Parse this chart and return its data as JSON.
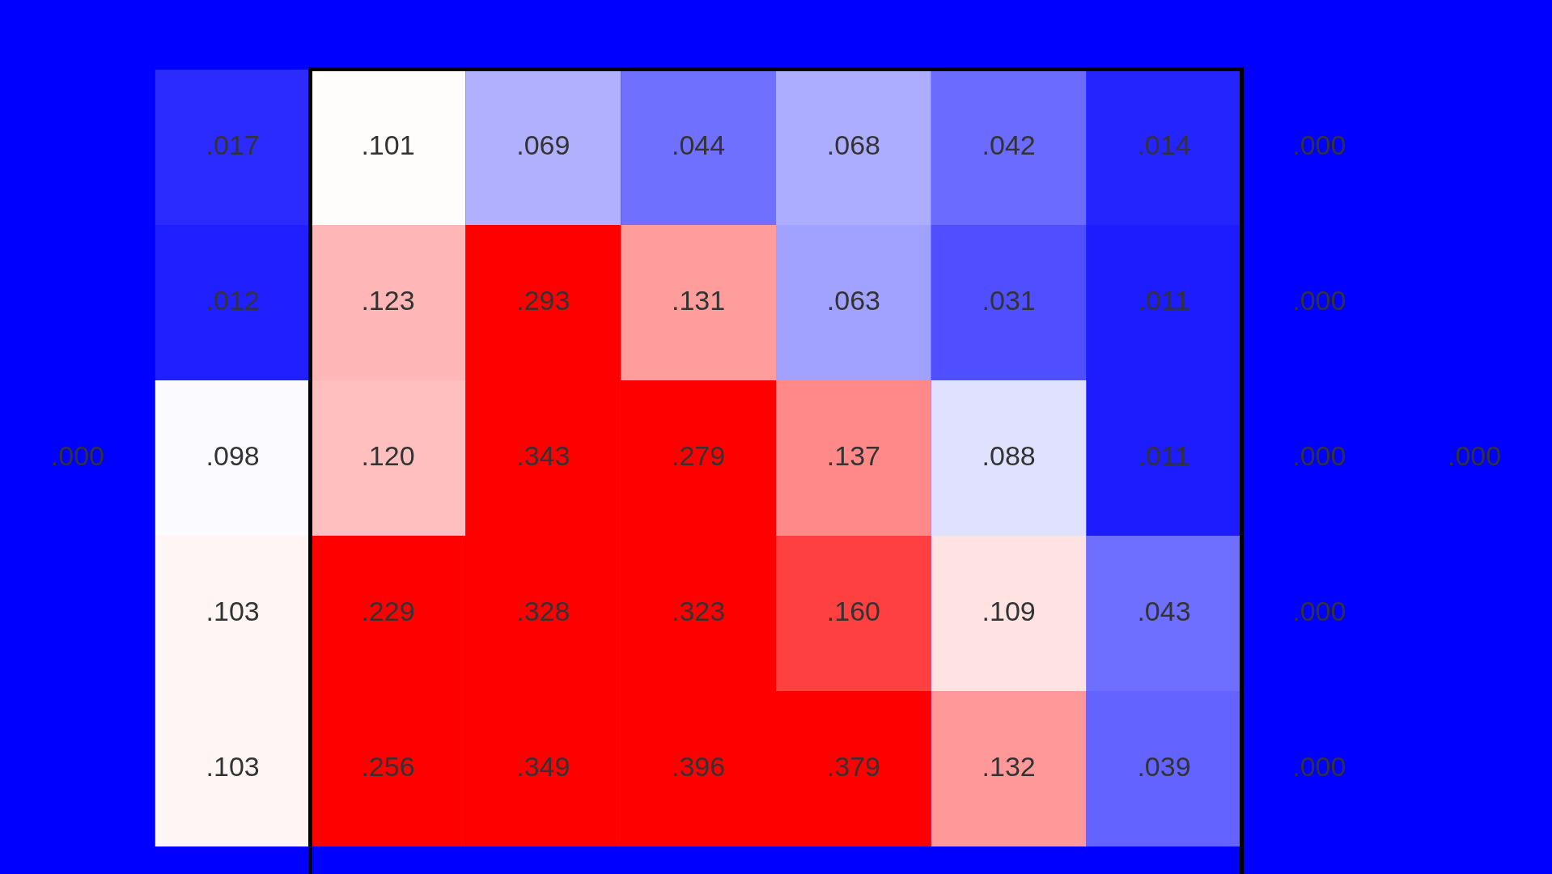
{
  "chart_data": {
    "type": "heatmap",
    "categories": [
      null,
      null,
      null,
      null,
      null,
      null,
      null,
      null,
      null,
      null
    ],
    "y_categories": [
      null,
      null,
      null,
      null,
      null
    ],
    "cells": [
      [
        null,
        0.017,
        0.101,
        0.069,
        0.044,
        0.068,
        0.042,
        0.014,
        0.0,
        null
      ],
      [
        null,
        0.012,
        0.123,
        0.293,
        0.131,
        0.063,
        0.031,
        0.011,
        0.0,
        null
      ],
      [
        0.0,
        0.098,
        0.12,
        0.343,
        0.279,
        0.137,
        0.088,
        0.011,
        0.0,
        0.0
      ],
      [
        null,
        0.103,
        0.229,
        0.328,
        0.323,
        0.16,
        0.109,
        0.043,
        0.0,
        null
      ],
      [
        null,
        0.103,
        0.256,
        0.349,
        0.396,
        0.379,
        0.132,
        0.039,
        0.0,
        null
      ]
    ],
    "cell_labels": [
      [
        null,
        ".017",
        ".101",
        ".069",
        ".044",
        ".068",
        ".042",
        ".014",
        ".000",
        null
      ],
      [
        null,
        ".012",
        ".123",
        ".293",
        ".131",
        ".063",
        ".031",
        ".011",
        ".000",
        null
      ],
      [
        ".000",
        ".098",
        ".120",
        ".343",
        ".279",
        ".137",
        ".088",
        ".011",
        ".000",
        ".000"
      ],
      [
        null,
        ".103",
        ".229",
        ".328",
        ".323",
        ".160",
        ".109",
        ".043",
        ".000",
        null
      ],
      [
        null,
        ".103",
        ".256",
        ".349",
        ".396",
        ".379",
        ".132",
        ".039",
        ".000",
        null
      ]
    ]
  }
}
